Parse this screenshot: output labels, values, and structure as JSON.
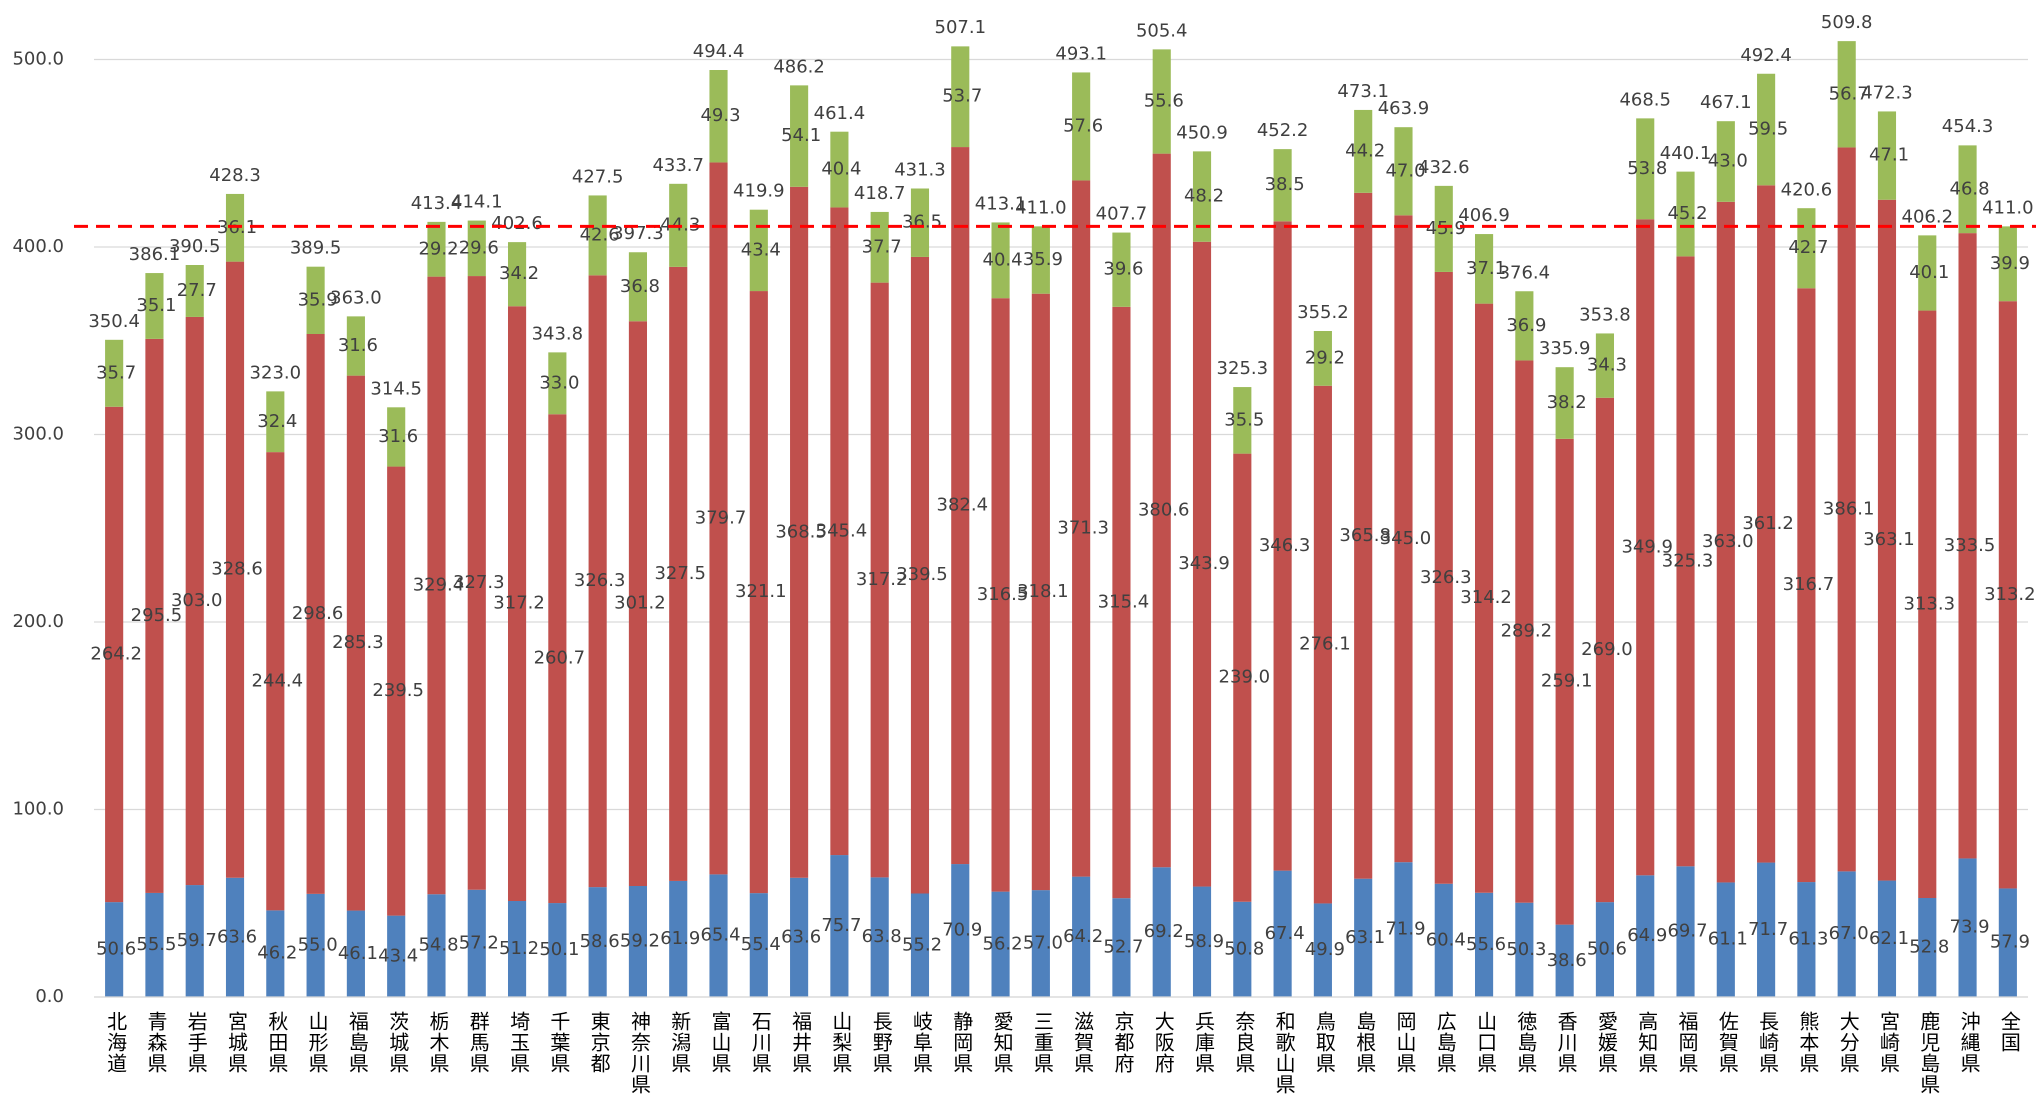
{
  "chart_data": {
    "type": "stacked_bar",
    "categories": [
      "北海道",
      "青森県",
      "岩手県",
      "宮城県",
      "秋田県",
      "山形県",
      "福島県",
      "茨城県",
      "栃木県",
      "群馬県",
      "埼玉県",
      "千葉県",
      "東京都",
      "神奈川県",
      "新潟県",
      "富山県",
      "石川県",
      "福井県",
      "山梨県",
      "長野県",
      "岐阜県",
      "静岡県",
      "愛知県",
      "三重県",
      "滋賀県",
      "京都府",
      "大阪府",
      "兵庫県",
      "奈良県",
      "和歌山県",
      "鳥取県",
      "島根県",
      "岡山県",
      "広島県",
      "山口県",
      "徳島県",
      "香川県",
      "愛媛県",
      "高知県",
      "福岡県",
      "佐賀県",
      "長崎県",
      "熊本県",
      "大分県",
      "宮崎県",
      "鹿児島県",
      "沖縄県",
      "全国"
    ],
    "series": [
      {
        "color": "#4f81bd",
        "values": [
          50.6,
          55.5,
          59.7,
          63.6,
          46.2,
          55.0,
          46.1,
          43.4,
          54.8,
          57.2,
          51.2,
          50.1,
          58.6,
          59.2,
          61.9,
          65.4,
          55.4,
          63.6,
          75.7,
          63.8,
          55.2,
          70.9,
          56.2,
          57.0,
          64.2,
          52.7,
          69.2,
          58.9,
          50.8,
          67.4,
          49.9,
          63.1,
          71.9,
          60.4,
          55.6,
          50.3,
          38.6,
          50.6,
          64.9,
          69.7,
          61.1,
          71.7,
          61.3,
          67.0,
          62.1,
          52.8,
          73.9,
          57.9
        ],
        "value_labels": [
          "50.6",
          "55.5",
          "59.7",
          "63.6",
          "46.2",
          "55.0",
          "46.1",
          "43.4",
          "54.8",
          "57.2",
          "51.2",
          "50.1",
          "58.6",
          "59.2",
          "61.9",
          "65.4",
          "55.4",
          "63.6",
          "75.7",
          "63.8",
          "55.2",
          "70.9",
          "56.2",
          "57.0",
          "64.2",
          "52.7",
          "69.2",
          "58.9",
          "50.8",
          "67.4",
          "49.9",
          "63.1",
          "71.9",
          "60.4",
          "55.6",
          "50.3",
          "38.6",
          "50.6",
          "64.9",
          "69.7",
          "61.1",
          "71.7",
          "61.3",
          "67.0",
          "62.1",
          "52.8",
          "73.9",
          "57.9"
        ]
      },
      {
        "color": "#c0504d",
        "values": [
          264.2,
          295.5,
          303.0,
          328.6,
          244.4,
          298.6,
          285.3,
          239.5,
          329.4,
          327.3,
          317.2,
          260.7,
          326.3,
          301.2,
          327.5,
          379.7,
          321.1,
          368.5,
          345.4,
          317.2,
          339.5,
          382.4,
          316.5,
          318.1,
          371.3,
          315.4,
          380.6,
          343.9,
          239.0,
          346.3,
          276.1,
          365.8,
          345.0,
          326.3,
          314.2,
          289.2,
          259.1,
          269.0,
          349.9,
          325.3,
          363.0,
          361.2,
          316.7,
          386.1,
          363.1,
          313.3,
          333.5,
          313.2
        ],
        "value_labels": [
          "264.2",
          "295.5",
          "303.0",
          "328.6",
          "244.4",
          "298.6",
          "285.3",
          "239.5",
          "329.4",
          "327.3",
          "317.2",
          "260.7",
          "326.3",
          "301.2",
          "327.5",
          "379.7",
          "321.1",
          "368.5",
          "345.4",
          "317.2",
          "339.5",
          "382.4",
          "316.5",
          "318.1",
          "371.3",
          "315.4",
          "380.6",
          "343.9",
          "239.0",
          "346.3",
          "276.1",
          "365.8",
          "345.0",
          "326.3",
          "314.2",
          "289.2",
          "259.1",
          "269.0",
          "349.9",
          "325.3",
          "363.0",
          "361.2",
          "316.7",
          "386.1",
          "363.1",
          "313.3",
          "333.5",
          "313.2"
        ]
      },
      {
        "color": "#9bbb59",
        "values": [
          35.7,
          35.1,
          27.7,
          36.1,
          32.4,
          35.9,
          31.6,
          31.6,
          29.2,
          29.6,
          34.2,
          33.0,
          42.6,
          36.8,
          44.3,
          49.3,
          43.4,
          54.1,
          40.4,
          37.7,
          36.5,
          53.7,
          40.4,
          35.9,
          57.6,
          39.6,
          55.6,
          48.2,
          35.5,
          38.5,
          29.2,
          44.2,
          47.0,
          45.9,
          37.1,
          36.9,
          38.2,
          34.3,
          53.8,
          45.2,
          43.0,
          59.5,
          42.7,
          56.7,
          47.1,
          40.1,
          46.8,
          39.9
        ],
        "value_labels": [
          "35.7",
          "35.1",
          "27.7",
          "36.1",
          "32.4",
          "35.9",
          "31.6",
          "31.6",
          "29.2",
          "29.6",
          "34.2",
          "33.0",
          "42.6",
          "36.8",
          "44.3",
          "49.3",
          "43.4",
          "54.1",
          "40.4",
          "37.7",
          "36.5",
          "53.7",
          "40.4",
          "35.9",
          "57.6",
          "39.6",
          "55.6",
          "48.2",
          "35.5",
          "38.5",
          "29.2",
          "44.2",
          "47.0",
          "45.9",
          "37.1",
          "36.9",
          "38.2",
          "34.3",
          "53.8",
          "45.2",
          "43.0",
          "59.5",
          "42.7",
          "56.7",
          "47.1",
          "40.1",
          "46.8",
          "39.9"
        ]
      }
    ],
    "totals": [
      350.4,
      386.1,
      390.5,
      428.3,
      323.0,
      389.5,
      363.0,
      314.5,
      413.4,
      414.1,
      402.6,
      343.8,
      427.5,
      397.3,
      433.7,
      494.4,
      419.9,
      486.2,
      461.4,
      418.7,
      431.3,
      507.1,
      413.1,
      411.0,
      493.1,
      407.7,
      505.4,
      450.9,
      325.3,
      452.2,
      355.2,
      473.1,
      463.9,
      432.6,
      406.9,
      376.4,
      335.9,
      353.8,
      468.5,
      440.1,
      467.1,
      492.4,
      420.6,
      509.8,
      472.3,
      406.2,
      454.3,
      411.0
    ],
    "total_labels": [
      "350.4",
      "386.1",
      "390.5",
      "428.3",
      "323.0",
      "389.5",
      "363.0",
      "314.5",
      "413.4",
      "414.1",
      "402.6",
      "343.8",
      "427.5",
      "397.3",
      "433.7",
      "494.4",
      "419.9",
      "486.2",
      "461.4",
      "418.7",
      "431.3",
      "507.1",
      "413.1",
      "411.0",
      "493.1",
      "407.7",
      "505.4",
      "450.9",
      "325.3",
      "452.2",
      "355.2",
      "473.1",
      "463.9",
      "432.6",
      "406.9",
      "376.4",
      "335.9",
      "353.8",
      "468.5",
      "440.1",
      "467.1",
      "492.4",
      "420.6",
      "509.8",
      "472.3",
      "406.2",
      "454.3",
      "411.0"
    ],
    "reference_line": 411.0,
    "reference_color": "#ff0000",
    "ylim": [
      0,
      520
    ],
    "yticks": [
      {
        "value": 0,
        "label": "0.0"
      },
      {
        "value": 100,
        "label": "100.0"
      },
      {
        "value": 200,
        "label": "200.0"
      },
      {
        "value": 300,
        "label": "300.0"
      },
      {
        "value": 400,
        "label": "400.0"
      },
      {
        "value": 500,
        "label": "500.0"
      }
    ],
    "grid": true
  }
}
